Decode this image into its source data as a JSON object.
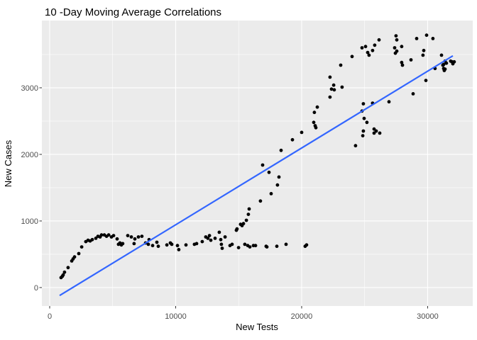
{
  "chart_data": {
    "type": "scatter",
    "title": "10 -Day Moving Average Correlations",
    "xlabel": "New Tests",
    "ylabel": "New Cases",
    "legend": "none",
    "grid": true,
    "xlim": [
      -620,
      33580
    ],
    "ylim": [
      -277,
      4010
    ],
    "x_ticks": [
      0,
      10000,
      20000,
      30000
    ],
    "x_tick_labels": [
      "0",
      "10000",
      "20000",
      "30000"
    ],
    "x_minor_ticks": [
      5000,
      15000,
      25000
    ],
    "y_ticks": [
      0,
      1000,
      2000,
      3000
    ],
    "y_tick_labels": [
      "0",
      "1000",
      "2000",
      "3000"
    ],
    "y_minor_ticks": [
      500,
      1500,
      2500,
      3500
    ],
    "colors": {
      "panel_bg": "#EBEBEB",
      "grid": "#FFFFFF",
      "point": "#000000",
      "line": "#3366FF",
      "tick_label": "#4D4D4D",
      "tick_mark": "#333333",
      "title": "#000000"
    },
    "trend_line": {
      "x1": 790,
      "y1": -120,
      "x2": 32000,
      "y2": 3480
    },
    "points": [
      [
        900,
        150
      ],
      [
        1010,
        170
      ],
      [
        1070,
        190
      ],
      [
        1180,
        230
      ],
      [
        1460,
        300
      ],
      [
        1750,
        400
      ],
      [
        1860,
        430
      ],
      [
        1970,
        460
      ],
      [
        2310,
        510
      ],
      [
        2540,
        610
      ],
      [
        2870,
        690
      ],
      [
        3040,
        710
      ],
      [
        3210,
        700
      ],
      [
        3380,
        720
      ],
      [
        3660,
        740
      ],
      [
        3830,
        770
      ],
      [
        4000,
        760
      ],
      [
        4110,
        790
      ],
      [
        4340,
        790
      ],
      [
        4510,
        770
      ],
      [
        4680,
        790
      ],
      [
        4900,
        760
      ],
      [
        5070,
        780
      ],
      [
        5350,
        730
      ],
      [
        5460,
        650
      ],
      [
        5580,
        670
      ],
      [
        5690,
        640
      ],
      [
        5800,
        660
      ],
      [
        6200,
        780
      ],
      [
        6480,
        760
      ],
      [
        6700,
        660
      ],
      [
        6760,
        730
      ],
      [
        7040,
        760
      ],
      [
        7320,
        770
      ],
      [
        7610,
        670
      ],
      [
        7830,
        650
      ],
      [
        7890,
        720
      ],
      [
        8170,
        630
      ],
      [
        8510,
        680
      ],
      [
        8620,
        620
      ],
      [
        9300,
        640
      ],
      [
        9580,
        670
      ],
      [
        9690,
        650
      ],
      [
        10140,
        630
      ],
      [
        10250,
        570
      ],
      [
        10820,
        640
      ],
      [
        11490,
        650
      ],
      [
        11660,
        660
      ],
      [
        12110,
        690
      ],
      [
        12390,
        760
      ],
      [
        12560,
        740
      ],
      [
        12680,
        780
      ],
      [
        12790,
        710
      ],
      [
        13130,
        740
      ],
      [
        13460,
        830
      ],
      [
        13580,
        720
      ],
      [
        13630,
        650
      ],
      [
        13690,
        590
      ],
      [
        13920,
        760
      ],
      [
        14310,
        630
      ],
      [
        14480,
        650
      ],
      [
        14820,
        860
      ],
      [
        14870,
        880
      ],
      [
        14990,
        600
      ],
      [
        15150,
        950
      ],
      [
        15270,
        930
      ],
      [
        15380,
        960
      ],
      [
        15490,
        650
      ],
      [
        15610,
        1010
      ],
      [
        15720,
        630
      ],
      [
        15770,
        1100
      ],
      [
        15830,
        1180
      ],
      [
        15890,
        610
      ],
      [
        16170,
        630
      ],
      [
        16340,
        630
      ],
      [
        16730,
        1300
      ],
      [
        16900,
        1840
      ],
      [
        17180,
        620
      ],
      [
        17240,
        610
      ],
      [
        17410,
        1730
      ],
      [
        17580,
        1410
      ],
      [
        18030,
        620
      ],
      [
        18080,
        1540
      ],
      [
        18200,
        1660
      ],
      [
        18370,
        2060
      ],
      [
        18760,
        650
      ],
      [
        19270,
        2220
      ],
      [
        20000,
        2330
      ],
      [
        20280,
        620
      ],
      [
        20390,
        640
      ],
      [
        20960,
        2480
      ],
      [
        21010,
        2630
      ],
      [
        21070,
        2430
      ],
      [
        21130,
        2400
      ],
      [
        21240,
        2710
      ],
      [
        22250,
        3160
      ],
      [
        22250,
        2860
      ],
      [
        22370,
        2980
      ],
      [
        22540,
        3040
      ],
      [
        22590,
        2970
      ],
      [
        23100,
        3340
      ],
      [
        23210,
        3010
      ],
      [
        24000,
        3470
      ],
      [
        24280,
        2130
      ],
      [
        24790,
        3600
      ],
      [
        24790,
        2650
      ],
      [
        24850,
        2280
      ],
      [
        24900,
        2760
      ],
      [
        24900,
        2350
      ],
      [
        24960,
        2540
      ],
      [
        25070,
        3620
      ],
      [
        25180,
        2480
      ],
      [
        25240,
        3530
      ],
      [
        25350,
        3490
      ],
      [
        25630,
        3560
      ],
      [
        25630,
        2770
      ],
      [
        25750,
        2380
      ],
      [
        25750,
        2320
      ],
      [
        25800,
        3640
      ],
      [
        25920,
        2350
      ],
      [
        26140,
        3720
      ],
      [
        26200,
        2320
      ],
      [
        26930,
        2790
      ],
      [
        27380,
        3600
      ],
      [
        27440,
        3520
      ],
      [
        27490,
        3780
      ],
      [
        27550,
        3720
      ],
      [
        27550,
        3550
      ],
      [
        27940,
        3620
      ],
      [
        27940,
        3380
      ],
      [
        28000,
        3340
      ],
      [
        28680,
        3420
      ],
      [
        28850,
        2910
      ],
      [
        29130,
        3740
      ],
      [
        29630,
        3490
      ],
      [
        29690,
        3560
      ],
      [
        29860,
        3110
      ],
      [
        29920,
        3790
      ],
      [
        30420,
        3740
      ],
      [
        30590,
        3290
      ],
      [
        31100,
        3490
      ],
      [
        31210,
        3340
      ],
      [
        31270,
        3350
      ],
      [
        31270,
        3290
      ],
      [
        31320,
        3260
      ],
      [
        31380,
        3400
      ],
      [
        31380,
        3280
      ],
      [
        31490,
        3370
      ],
      [
        31830,
        3400
      ],
      [
        31940,
        3390
      ],
      [
        32000,
        3360
      ],
      [
        32110,
        3390
      ]
    ]
  }
}
